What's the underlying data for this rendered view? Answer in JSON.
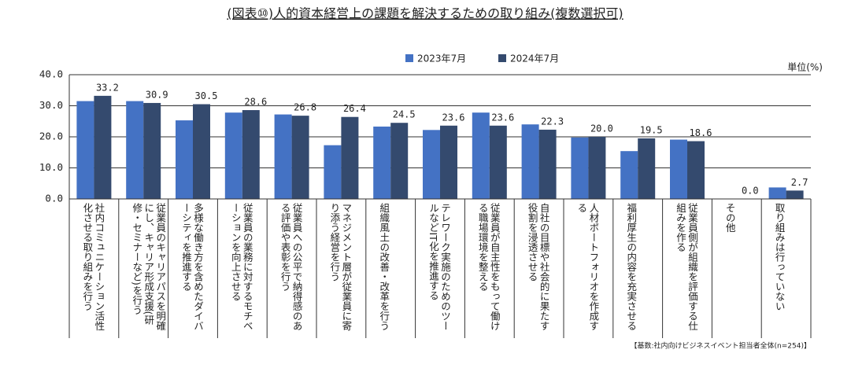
{
  "chart_data": {
    "type": "bar",
    "title": "(図表⑩)人的資本経営上の課題を解決するための取り組み(複数選択可)",
    "unit_label": "単位(%)",
    "footnote": "【基数:社内向けビジネスイベント担当者全体(n=254)】",
    "categories": [
      "社内コミュニケーション活性化させる取り組みを行う",
      "従業員のキャリアパスを明確にし、キャリア形成支援(研修・セミナーなど)を行う",
      "多様な働き方を含めたダイバーシティを推進する",
      "従業員の業務に対するモチベーションを向上させる",
      "従業員への公平で納得感のある評価や表彰を行う",
      "マネジメント層が従業員に寄り添う経営を行う",
      "組織風土の改善・改革を行う",
      "テレワーク実施のためのツールなどIT化を推進する",
      "従業員が自主性をもって働ける職場環境を整える",
      "自社の目標や社会的に果たす役割を浸透させる",
      "人材ポートフォリオを作成する",
      "福利厚生の内容を充実させる",
      "従業員側が組織を評価する仕組みを作る",
      "その他",
      "取り組みは行っていない"
    ],
    "series": [
      {
        "name": "2023年7月",
        "color": "#4472c4",
        "values": [
          31.5,
          31.5,
          25.3,
          27.8,
          27.2,
          17.3,
          23.3,
          22.2,
          27.8,
          24.0,
          19.8,
          15.4,
          19.1,
          0.0,
          3.7
        ]
      },
      {
        "name": "2024年7月",
        "color": "#344a6e",
        "values": [
          33.2,
          30.9,
          30.5,
          28.6,
          26.8,
          26.4,
          24.5,
          23.6,
          23.6,
          22.3,
          20.0,
          19.5,
          18.6,
          0.0,
          2.7
        ],
        "value_labels": [
          "33.2",
          "30.9",
          "30.5",
          "28.6",
          "26.8",
          "26.4",
          "24.5",
          "23.6",
          "23.6",
          "22.3",
          "20.0",
          "19.5",
          "18.6",
          "0.0",
          "2.7"
        ]
      }
    ],
    "ylim": [
      0,
      40
    ],
    "yticks": [
      {
        "value": 0,
        "label": "0.0"
      },
      {
        "value": 10,
        "label": "10.0"
      },
      {
        "value": 20,
        "label": "20.0"
      },
      {
        "value": 30,
        "label": "30.0"
      },
      {
        "value": 40,
        "label": "40.0"
      }
    ],
    "grid": true,
    "legend": "top"
  }
}
